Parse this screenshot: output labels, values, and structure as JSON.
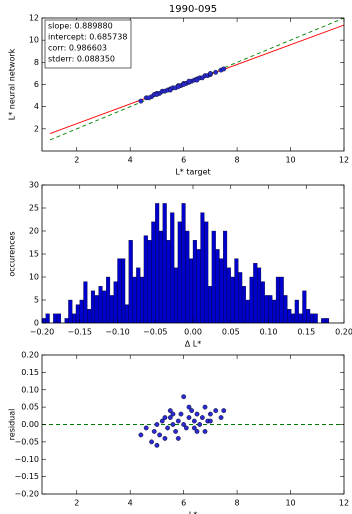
{
  "chart_data": [
    {
      "type": "scatter",
      "title": "1990-095",
      "xlabel": "L* target",
      "ylabel": "L* neural network",
      "xlim": [
        0.7,
        12
      ],
      "ylim": [
        0,
        12
      ],
      "xticks": [
        2,
        4,
        6,
        8,
        10,
        12
      ],
      "yticks": [
        2,
        4,
        6,
        8,
        10,
        12
      ],
      "annotations": [
        "slope: 0.889880",
        "intercept: 0.685738",
        "corr: 0.986603",
        "stderr: 0.088350"
      ],
      "series": [
        {
          "style": "dashed",
          "color": "#008000",
          "x": [
            1,
            12
          ],
          "values": [
            1,
            12
          ]
        },
        {
          "style": "line",
          "color": "#ff0000",
          "x": [
            1,
            12
          ],
          "values": [
            1.575618,
            11.364298
          ]
        },
        {
          "style": "markers",
          "color": "#2a2ad0",
          "x": [
            4.4,
            4.6,
            4.8,
            4.9,
            5.0,
            5.1,
            5.2,
            5.3,
            5.4,
            5.5,
            5.6,
            5.7,
            5.8,
            5.9,
            6.0,
            6.1,
            6.2,
            6.3,
            6.4,
            6.5,
            6.6,
            6.7,
            6.8,
            6.9,
            7.0,
            7.2,
            7.4,
            5.0,
            5.5,
            6.0,
            6.5,
            7.0,
            5.8,
            6.2,
            4.7,
            7.5
          ],
          "values": [
            4.5,
            4.8,
            4.9,
            5.1,
            5.2,
            5.2,
            5.4,
            5.4,
            5.5,
            5.6,
            5.7,
            5.7,
            5.9,
            5.9,
            6.1,
            6.1,
            6.2,
            6.3,
            6.4,
            6.5,
            6.6,
            6.6,
            6.8,
            6.8,
            6.9,
            7.1,
            7.3,
            5.1,
            5.5,
            6.0,
            6.4,
            7.0,
            5.8,
            6.3,
            4.8,
            7.4
          ]
        }
      ]
    },
    {
      "type": "histogram",
      "xlabel": "Δ L*",
      "ylabel": "occurences",
      "color": "#0000cc",
      "xlim": [
        -0.2,
        0.2
      ],
      "ylim": [
        0,
        30
      ],
      "xticks": [
        {
          "value": -0.2,
          "label": "−0.20"
        },
        {
          "value": -0.15,
          "label": "−0.15"
        },
        {
          "value": -0.1,
          "label": "−0.10"
        },
        {
          "value": -0.05,
          "label": "−0.05"
        },
        {
          "value": 0,
          "label": "0.00"
        },
        {
          "value": 0.05,
          "label": "0.05"
        },
        {
          "value": 0.1,
          "label": "0.10"
        },
        {
          "value": 0.15,
          "label": "0.15"
        },
        {
          "value": 0.2,
          "label": "0.20"
        }
      ],
      "yticks": [
        0,
        5,
        10,
        15,
        20,
        25,
        30
      ],
      "bins": [
        -0.2,
        -0.195,
        -0.19,
        -0.185,
        -0.18,
        -0.175,
        -0.17,
        -0.165,
        -0.16,
        -0.155,
        -0.15,
        -0.145,
        -0.14,
        -0.135,
        -0.13,
        -0.125,
        -0.12,
        -0.115,
        -0.11,
        -0.105,
        -0.1,
        -0.095,
        -0.09,
        -0.085,
        -0.08,
        -0.075,
        -0.07,
        -0.065,
        -0.06,
        -0.055,
        -0.05,
        -0.045,
        -0.04,
        -0.035,
        -0.03,
        -0.025,
        -0.02,
        -0.015,
        -0.01,
        -0.005,
        0,
        0.005,
        0.01,
        0.015,
        0.02,
        0.025,
        0.03,
        0.035,
        0.04,
        0.045,
        0.05,
        0.055,
        0.06,
        0.065,
        0.07,
        0.075,
        0.08,
        0.085,
        0.09,
        0.095,
        0.1,
        0.105,
        0.11,
        0.115,
        0.12,
        0.125,
        0.13,
        0.135,
        0.14,
        0.145,
        0.15,
        0.155,
        0.16,
        0.165,
        0.17,
        0.175,
        0.18,
        0.185,
        0.19,
        0.195,
        0.2
      ],
      "values": [
        1,
        2,
        0,
        2,
        2,
        0,
        1,
        5,
        2,
        4,
        5,
        9,
        3,
        7,
        6,
        8,
        7,
        10,
        6,
        9,
        14,
        14,
        4,
        18,
        10,
        12,
        10,
        19,
        18,
        22,
        26,
        20,
        26,
        18,
        24,
        12,
        22,
        26,
        20,
        14,
        18,
        16,
        24,
        22,
        8,
        20,
        16,
        14,
        20,
        12,
        10,
        14,
        11,
        8,
        5,
        10,
        13,
        12,
        9,
        6,
        6,
        5,
        10,
        10,
        6,
        3,
        2,
        5,
        2,
        7,
        3,
        2,
        2,
        0,
        1,
        1,
        0,
        0,
        0,
        0
      ]
    },
    {
      "type": "scatter",
      "xlabel": "L*",
      "ylabel": "residual",
      "xlim": [
        0.7,
        12
      ],
      "ylim": [
        -0.2,
        0.2
      ],
      "xticks": [
        2,
        4,
        6,
        8,
        10,
        12
      ],
      "yticks": [
        {
          "value": -0.2,
          "label": "−0.20"
        },
        {
          "value": -0.15,
          "label": "−0.15"
        },
        {
          "value": -0.1,
          "label": "−0.10"
        },
        {
          "value": -0.05,
          "label": "−0.05"
        },
        {
          "value": 0,
          "label": "0.00"
        },
        {
          "value": 0.05,
          "label": "0.05"
        },
        {
          "value": 0.1,
          "label": "0.10"
        },
        {
          "value": 0.15,
          "label": "0.15"
        },
        {
          "value": 0.2,
          "label": "0.20"
        }
      ],
      "series": [
        {
          "style": "dashed",
          "color": "#008000",
          "x": [
            0.7,
            12
          ],
          "values": [
            0,
            0
          ]
        },
        {
          "style": "markers",
          "color": "#2a2ad0",
          "x": [
            4.4,
            4.6,
            4.8,
            4.9,
            5.0,
            5.1,
            5.2,
            5.3,
            5.4,
            5.5,
            5.6,
            5.7,
            5.8,
            5.9,
            6.0,
            6.1,
            6.2,
            6.3,
            6.4,
            6.5,
            6.6,
            6.7,
            6.8,
            6.9,
            7.0,
            7.2,
            7.4,
            5.0,
            5.5,
            6.0,
            6.5,
            7.0,
            5.8,
            6.2,
            5.6,
            7.5,
            6.4,
            5.3,
            6.8
          ],
          "values": [
            -0.03,
            -0.01,
            -0.05,
            -0.02,
            0.0,
            -0.03,
            0.01,
            -0.04,
            -0.01,
            0.02,
            0.0,
            -0.02,
            0.01,
            0.03,
            0.0,
            -0.01,
            0.02,
            0.04,
            0.01,
            0.03,
            0.0,
            0.02,
            0.05,
            0.01,
            0.03,
            0.04,
            0.02,
            -0.06,
            0.04,
            0.08,
            -0.02,
            0.01,
            -0.04,
            0.05,
            0.03,
            0.04,
            -0.01,
            0.02,
            -0.02
          ]
        }
      ]
    }
  ]
}
